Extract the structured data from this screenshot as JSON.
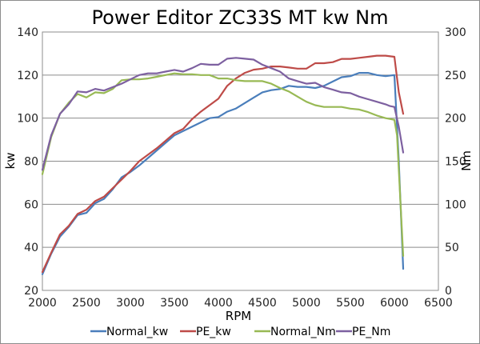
{
  "chart_data": {
    "type": "line",
    "title": "Power Editor ZC33S MT kw Nm",
    "xlabel": "RPM",
    "ylabel": "kw",
    "y2label": "Nm",
    "xlim": [
      2000,
      6500
    ],
    "ylim": [
      20,
      140
    ],
    "y2lim": [
      0,
      300
    ],
    "xticks": [
      2000,
      2500,
      3000,
      3500,
      4000,
      4500,
      5000,
      5500,
      6000,
      6500
    ],
    "yticks": [
      20,
      40,
      60,
      80,
      100,
      120,
      140
    ],
    "y2ticks": [
      0,
      50,
      100,
      150,
      200,
      250,
      300
    ],
    "grid": true,
    "legend_position": "bottom",
    "series": [
      {
        "name": "Normal_kw",
        "axis": "left",
        "color": "#4a7ebb",
        "x": [
          2000,
          2100,
          2200,
          2300,
          2400,
          2500,
          2600,
          2700,
          2800,
          2900,
          3000,
          3100,
          3200,
          3300,
          3400,
          3500,
          3600,
          3700,
          3800,
          3900,
          4000,
          4100,
          4200,
          4300,
          4400,
          4500,
          4600,
          4700,
          4800,
          4900,
          5000,
          5100,
          5200,
          5300,
          5400,
          5500,
          5600,
          5700,
          5800,
          5900,
          6000,
          6050,
          6100
        ],
        "y": [
          27.5,
          37,
          45,
          49.5,
          55,
          56,
          60.5,
          62.5,
          67,
          72.5,
          75,
          78,
          81.5,
          85,
          88.5,
          92,
          94,
          96,
          98,
          100,
          100.5,
          103,
          104.5,
          107,
          109.5,
          112,
          113,
          113.5,
          115,
          114.5,
          114.5,
          114,
          115,
          117,
          119,
          119.5,
          121,
          121,
          120,
          119.5,
          120,
          80,
          30
        ]
      },
      {
        "name": "PE_kw",
        "axis": "left",
        "color": "#be4b48",
        "x": [
          2000,
          2100,
          2200,
          2300,
          2400,
          2500,
          2600,
          2700,
          2800,
          2900,
          3000,
          3100,
          3200,
          3300,
          3400,
          3500,
          3600,
          3700,
          3800,
          3900,
          4000,
          4100,
          4200,
          4300,
          4400,
          4500,
          4600,
          4700,
          4800,
          4900,
          5000,
          5100,
          5200,
          5300,
          5400,
          5500,
          5600,
          5700,
          5800,
          5900,
          6000,
          6050,
          6100
        ],
        "y": [
          28.5,
          37.5,
          46,
          50,
          55.5,
          57.5,
          61.5,
          63.5,
          67.5,
          71.5,
          75.5,
          80,
          83,
          86,
          89.5,
          93,
          95,
          99.5,
          103,
          106,
          109,
          115,
          118.5,
          121,
          122.5,
          123,
          124,
          124,
          123.5,
          123,
          123,
          125.5,
          125.5,
          126,
          127.5,
          127.5,
          128,
          128.5,
          129,
          129,
          128.5,
          112,
          102
        ]
      },
      {
        "name": "Normal_Nm",
        "axis": "right",
        "color": "#98b954",
        "x": [
          2000,
          2100,
          2200,
          2300,
          2400,
          2500,
          2600,
          2700,
          2800,
          2900,
          3000,
          3100,
          3200,
          3300,
          3400,
          3500,
          3600,
          3700,
          3800,
          3900,
          4000,
          4100,
          4200,
          4300,
          4400,
          4500,
          4600,
          4700,
          4800,
          4900,
          5000,
          5100,
          5200,
          5300,
          5400,
          5500,
          5600,
          5700,
          5800,
          5900,
          5950,
          6000,
          6030,
          6060,
          6100
        ],
        "y": [
          135,
          178,
          205,
          218,
          228,
          224,
          230,
          229,
          234,
          244,
          245,
          245,
          246,
          248,
          250,
          252,
          251,
          251,
          250,
          250,
          246,
          246,
          244,
          243,
          243,
          243,
          240,
          235,
          231,
          225,
          219,
          215,
          213,
          213,
          213,
          211,
          210,
          207,
          203,
          200,
          199,
          198,
          180,
          120,
          40
        ]
      },
      {
        "name": "PE_Nm",
        "axis": "right",
        "color": "#7d60a0",
        "x": [
          2000,
          2100,
          2200,
          2300,
          2400,
          2500,
          2600,
          2700,
          2800,
          2900,
          3000,
          3100,
          3200,
          3300,
          3400,
          3500,
          3600,
          3700,
          3800,
          3900,
          4000,
          4100,
          4200,
          4300,
          4400,
          4500,
          4600,
          4700,
          4800,
          4900,
          5000,
          5100,
          5200,
          5300,
          5400,
          5500,
          5600,
          5700,
          5800,
          5900,
          5950,
          6000,
          6050,
          6100
        ],
        "y": [
          140,
          180,
          205,
          216,
          231,
          230,
          234,
          232,
          236,
          240,
          245,
          250,
          252,
          252,
          254,
          256,
          254,
          258,
          263,
          262,
          262,
          269,
          270,
          269,
          268,
          262,
          258,
          254,
          246,
          243,
          240,
          241,
          236,
          233,
          230,
          229,
          225,
          222,
          219,
          216,
          214,
          213,
          190,
          160
        ]
      }
    ]
  }
}
